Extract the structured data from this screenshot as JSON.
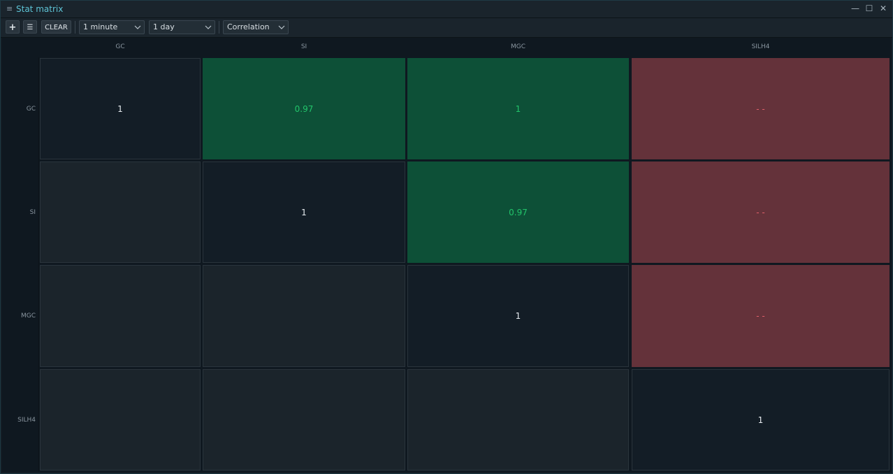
{
  "window": {
    "title": "Stat matrix",
    "menu_icon": "≡",
    "controls": {
      "minimize": "—",
      "maximize": "☐",
      "close": "✕"
    }
  },
  "toolbar": {
    "add_label": "+",
    "list_label": "☰",
    "clear_label": "CLEAR",
    "interval": "1 minute",
    "period": "1 day",
    "metric": "Correlation"
  },
  "matrix": {
    "symbols": [
      "GC",
      "SI",
      "MGC",
      "SILH4"
    ],
    "rows": [
      [
        "1",
        "0.97",
        "1",
        "- -"
      ],
      [
        "",
        "1",
        "0.97",
        "- -"
      ],
      [
        "",
        "",
        "1",
        "- -"
      ],
      [
        "",
        "",
        "",
        "1"
      ]
    ]
  },
  "colors": {
    "title": "#5ec4d6",
    "positive_bg": "#0d5037",
    "positive_text": "#22c46a",
    "negative_bg": "#64323a",
    "negative_text": "#e0606a"
  }
}
